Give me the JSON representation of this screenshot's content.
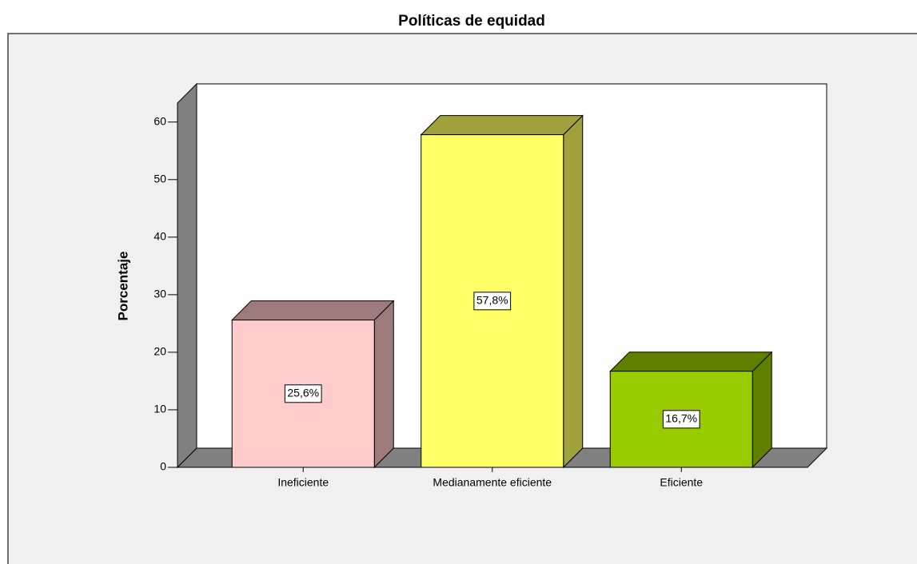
{
  "chart_data": {
    "type": "bar3d",
    "title": "Políticas de equidad",
    "y_label": "Porcentaje",
    "categories": [
      "Ineficiente",
      "Medianamente eficiente",
      "Eficiente"
    ],
    "values": [
      25.6,
      57.8,
      16.7
    ],
    "value_labels": [
      "25,6%",
      "57,8%",
      "16,7%"
    ],
    "colors": [
      "#ffcccc",
      "#ffff66",
      "#99cc00"
    ],
    "side_colors": [
      "#9e7b7b",
      "#a0a03c",
      "#5f7f00"
    ],
    "ylim": [
      0,
      63.3
    ],
    "yticks": [
      0,
      10,
      20,
      30,
      40,
      50,
      60
    ]
  }
}
